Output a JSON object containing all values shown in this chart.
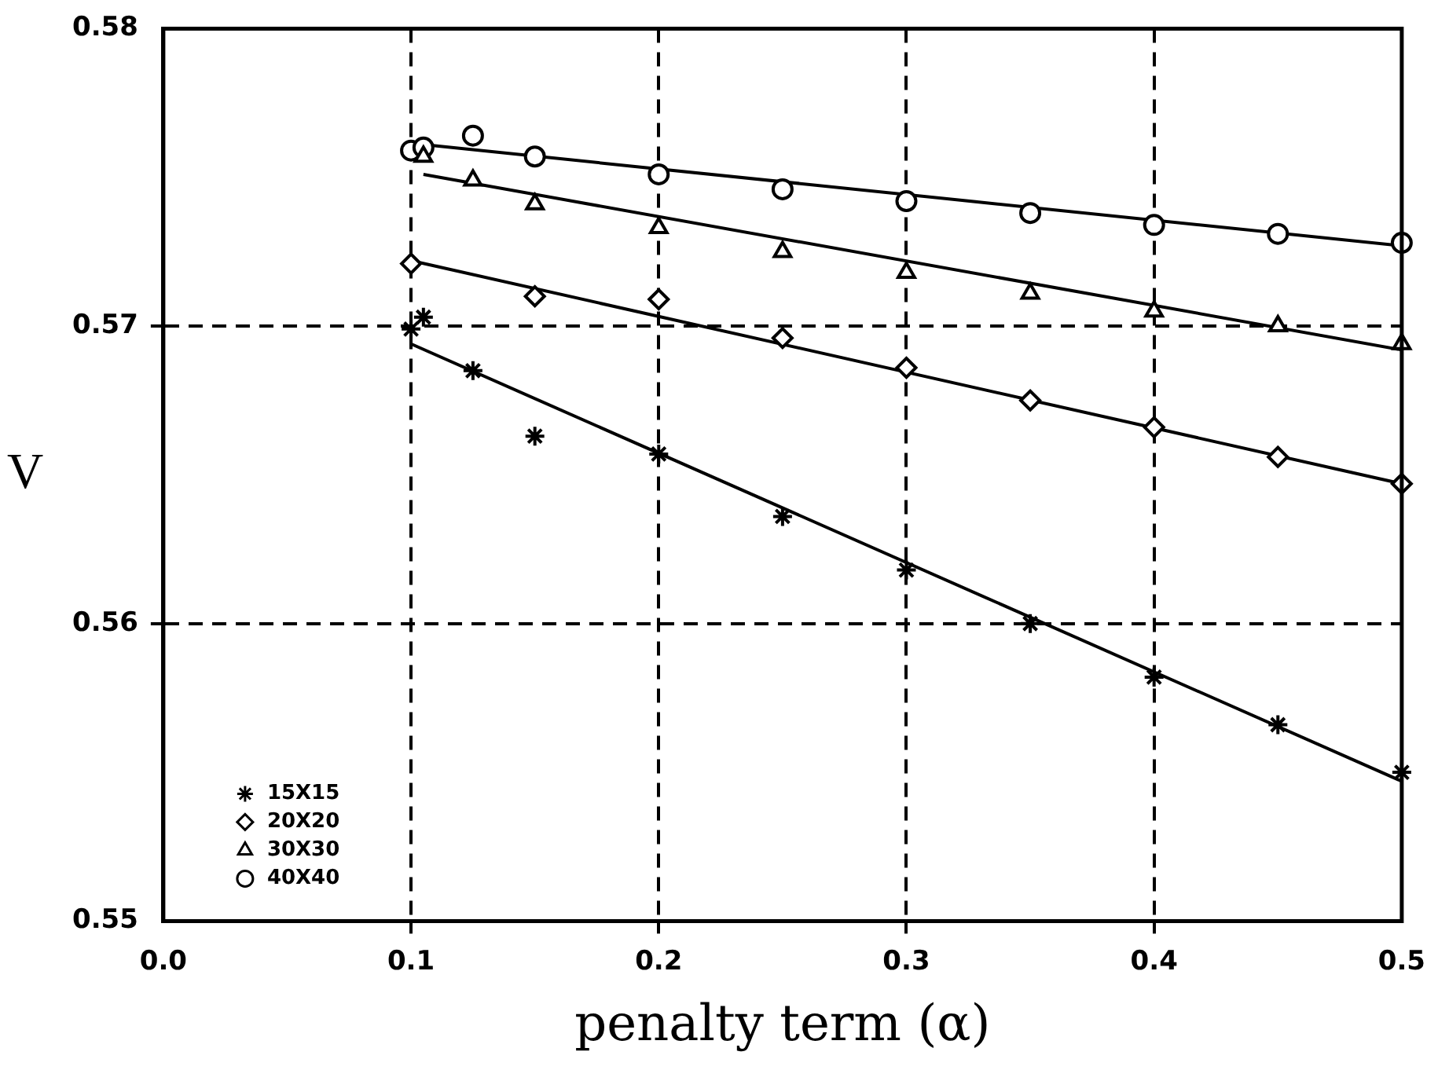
{
  "chart_data": {
    "type": "scatter",
    "xlabel": "penalty term (α)",
    "ylabel": "V",
    "xlim": [
      0,
      0.5
    ],
    "xticks": [
      {
        "value": 0,
        "label": "0.0"
      },
      0.1,
      0.2,
      0.3,
      0.4,
      0.5
    ],
    "ylim": [
      0.55,
      0.58
    ],
    "yticks": [
      0.55,
      {
        "value": 0.56,
        "label": "0.56"
      },
      0.57,
      {
        "value": 0.58,
        "label": "0.58"
      }
    ],
    "grid": true,
    "legend": "bottom left",
    "series": [
      {
        "name": "15X15",
        "color": "#000000",
        "marker": "cross",
        "x": [
          0.1,
          0.105,
          0.125,
          0.15,
          0.2,
          0.25,
          0.3,
          0.35,
          0.4,
          0.45,
          0.5
        ],
        "values": [
          0.5699,
          0.5703,
          0.5685,
          0.5663,
          0.5657,
          0.5636,
          0.5618,
          0.56,
          0.5582,
          0.5566,
          0.555
        ]
      },
      {
        "name": "20X20",
        "color": "#000000",
        "marker": "diamond",
        "x": [
          0.1,
          0.15,
          0.2,
          0.25,
          0.3,
          0.35,
          0.4,
          0.45,
          0.5
        ],
        "values": [
          0.5721,
          0.571,
          0.5709,
          0.5696,
          0.5686,
          0.5675,
          0.5666,
          0.5656,
          0.5647
        ]
      },
      {
        "name": "30X30",
        "color": "#000000",
        "marker": "triangle",
        "x": [
          0.105,
          0.125,
          0.15,
          0.2,
          0.25,
          0.3,
          0.35,
          0.4,
          0.45,
          0.5
        ],
        "values": [
          0.5757,
          0.5749,
          0.5741,
          0.5733,
          0.5725,
          0.5718,
          0.5711,
          0.5705,
          0.57,
          0.5694
        ]
      },
      {
        "name": "40X40",
        "color": "#000000",
        "marker": "circle",
        "x": [
          0.1,
          0.105,
          0.125,
          0.15,
          0.2,
          0.25,
          0.3,
          0.35,
          0.4,
          0.45,
          0.5
        ],
        "values": [
          0.5759,
          0.576,
          0.5764,
          0.5757,
          0.5751,
          0.5746,
          0.5742,
          0.5738,
          0.5734,
          0.5731,
          0.5728
        ]
      },
      {
        "type": "line",
        "color": "#000000",
        "marker": "none",
        "x": [
          0.1,
          0.5
        ],
        "values": [
          0.5694,
          0.5547
        ]
      },
      {
        "type": "line",
        "color": "#000000",
        "marker": "none",
        "x": [
          0.1,
          0.5
        ],
        "values": [
          0.5722,
          0.5647
        ]
      },
      {
        "type": "line",
        "color": "#000000",
        "marker": "none",
        "x": [
          0.105,
          0.5
        ],
        "values": [
          0.5751,
          0.5692
        ]
      },
      {
        "type": "line",
        "color": "#000000",
        "marker": "none",
        "x": [
          0.105,
          0.5
        ],
        "values": [
          0.5761,
          0.5727
        ]
      }
    ]
  }
}
